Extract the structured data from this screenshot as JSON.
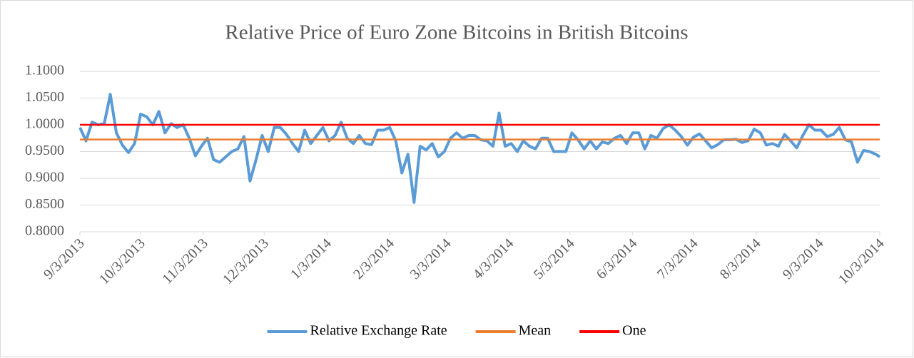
{
  "chart_data": {
    "type": "line",
    "title": "Relative Price of Euro Zone Bitcoins in British Bitcoins",
    "x": [
      "9/3/2013",
      "9/6/2013",
      "9/9/2013",
      "9/12/2013",
      "9/15/2013",
      "9/18/2013",
      "9/21/2013",
      "9/24/2013",
      "9/27/2013",
      "9/30/2013",
      "10/3/2013",
      "10/6/2013",
      "10/9/2013",
      "10/12/2013",
      "10/15/2013",
      "10/18/2013",
      "10/21/2013",
      "10/24/2013",
      "10/27/2013",
      "10/30/2013",
      "11/2/2013",
      "11/5/2013",
      "11/8/2013",
      "11/11/2013",
      "11/14/2013",
      "11/17/2013",
      "11/20/2013",
      "11/23/2013",
      "11/26/2013",
      "11/29/2013",
      "12/2/2013",
      "12/5/2013",
      "12/8/2013",
      "12/11/2013",
      "12/14/2013",
      "12/17/2013",
      "12/20/2013",
      "12/23/2013",
      "12/26/2013",
      "12/29/2013",
      "1/1/2014",
      "1/4/2014",
      "1/7/2014",
      "1/10/2014",
      "1/13/2014",
      "1/16/2014",
      "1/19/2014",
      "1/22/2014",
      "1/25/2014",
      "1/28/2014",
      "1/31/2014",
      "2/3/2014",
      "2/6/2014",
      "2/9/2014",
      "2/12/2014",
      "2/15/2014",
      "2/18/2014",
      "2/21/2014",
      "2/24/2014",
      "2/27/2014",
      "3/2/2014",
      "3/5/2014",
      "3/8/2014",
      "3/11/2014",
      "3/14/2014",
      "3/17/2014",
      "3/20/2014",
      "3/23/2014",
      "3/26/2014",
      "3/29/2014",
      "4/1/2014",
      "4/4/2014",
      "4/7/2014",
      "4/10/2014",
      "4/13/2014",
      "4/16/2014",
      "4/19/2014",
      "4/22/2014",
      "4/25/2014",
      "4/28/2014",
      "5/1/2014",
      "5/4/2014",
      "5/7/2014",
      "5/10/2014",
      "5/13/2014",
      "5/16/2014",
      "5/19/2014",
      "5/22/2014",
      "5/25/2014",
      "5/28/2014",
      "5/31/2014",
      "6/3/2014",
      "6/6/2014",
      "6/9/2014",
      "6/12/2014",
      "6/15/2014",
      "6/18/2014",
      "6/21/2014",
      "6/24/2014",
      "6/27/2014",
      "6/30/2014",
      "7/3/2014",
      "7/6/2014",
      "7/9/2014",
      "7/12/2014",
      "7/15/2014",
      "7/18/2014",
      "7/21/2014",
      "7/24/2014",
      "7/27/2014",
      "7/30/2014",
      "8/2/2014",
      "8/5/2014",
      "8/8/2014",
      "8/11/2014",
      "8/14/2014",
      "8/17/2014",
      "8/20/2014",
      "8/23/2014",
      "8/26/2014",
      "8/29/2014",
      "9/1/2014",
      "9/4/2014",
      "9/7/2014",
      "9/10/2014",
      "9/13/2014",
      "9/16/2014",
      "9/19/2014",
      "9/22/2014",
      "9/25/2014",
      "9/28/2014",
      "10/1/2014",
      "10/3/2014"
    ],
    "series": [
      {
        "name": "Relative Exchange Rate",
        "color": "#5b9bd5",
        "values": [
          0.995,
          0.97,
          1.005,
          1.0,
          1.002,
          1.057,
          0.985,
          0.962,
          0.948,
          0.965,
          1.02,
          1.015,
          1.0,
          1.025,
          0.985,
          1.002,
          0.995,
          1.0,
          0.975,
          0.942,
          0.96,
          0.975,
          0.935,
          0.93,
          0.94,
          0.95,
          0.955,
          0.978,
          0.895,
          0.935,
          0.98,
          0.95,
          0.995,
          0.995,
          0.982,
          0.965,
          0.95,
          0.99,
          0.965,
          0.98,
          0.995,
          0.97,
          0.98,
          1.005,
          0.975,
          0.965,
          0.98,
          0.965,
          0.963,
          0.99,
          0.99,
          0.995,
          0.97,
          0.91,
          0.945,
          0.855,
          0.96,
          0.953,
          0.965,
          0.94,
          0.95,
          0.975,
          0.985,
          0.975,
          0.98,
          0.98,
          0.972,
          0.97,
          0.96,
          1.022,
          0.96,
          0.965,
          0.95,
          0.97,
          0.96,
          0.955,
          0.975,
          0.975,
          0.95,
          0.95,
          0.95,
          0.985,
          0.972,
          0.955,
          0.97,
          0.955,
          0.968,
          0.965,
          0.975,
          0.98,
          0.965,
          0.985,
          0.985,
          0.955,
          0.98,
          0.975,
          0.993,
          1.0,
          0.99,
          0.978,
          0.962,
          0.977,
          0.983,
          0.97,
          0.957,
          0.963,
          0.972,
          0.972,
          0.973,
          0.967,
          0.97,
          0.992,
          0.985,
          0.962,
          0.965,
          0.96,
          0.982,
          0.97,
          0.957,
          0.98,
          1.0,
          0.99,
          0.99,
          0.978,
          0.982,
          0.995,
          0.972,
          0.968,
          0.93,
          0.952,
          0.95,
          0.945,
          0.94
        ]
      },
      {
        "name": "Mean",
        "color": "#ed7d31",
        "x": [
          "9/3/2013",
          "10/3/2014"
        ],
        "values": [
          0.9725,
          0.9725
        ]
      },
      {
        "name": "One",
        "color": "#ff0000",
        "x": [
          "9/3/2013",
          "10/3/2014"
        ],
        "values": [
          1.0,
          1.0
        ]
      }
    ],
    "xlim": [
      "9/3/2013",
      "10/3/2014"
    ],
    "xticks": [
      "9/3/2013",
      "10/3/2013",
      "11/3/2013",
      "12/3/2013",
      "1/3/2014",
      "2/3/2014",
      "3/3/2014",
      "4/3/2014",
      "5/3/2014",
      "6/3/2014",
      "7/3/2014",
      "8/3/2014",
      "9/3/2014",
      "10/3/2014"
    ],
    "ylim": [
      0.8,
      1.1
    ],
    "yticks": [
      {
        "value": 0.8,
        "label": "0.8000"
      },
      {
        "value": 0.85,
        "label": "0.8500"
      },
      {
        "value": 0.9,
        "label": "0.9000"
      },
      {
        "value": 0.95,
        "label": "0.9500"
      },
      {
        "value": 1.0,
        "label": "1.0000"
      },
      {
        "value": 1.05,
        "label": "1.0500"
      },
      {
        "value": 1.1,
        "label": "1.1000"
      }
    ],
    "grid": true,
    "legend": "bottom"
  }
}
